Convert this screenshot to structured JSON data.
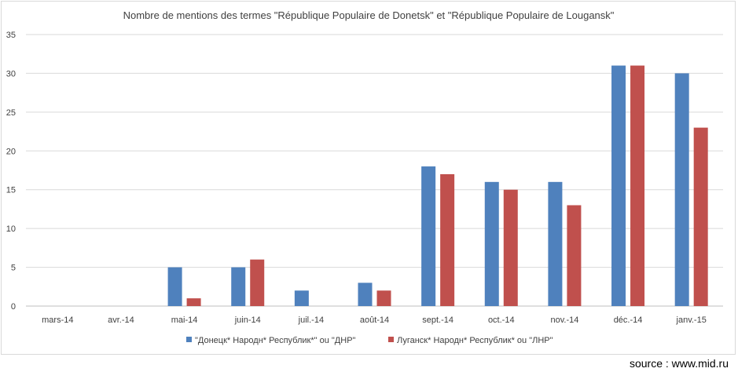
{
  "source_text": "source : www.mid.ru",
  "chart_data": {
    "type": "bar",
    "title": "Nombre de mentions des termes \"République Populaire de Donetsk\" et \"République Populaire de Lougansk\"",
    "categories": [
      "mars-14",
      "avr.-14",
      "mai-14",
      "juin-14",
      "juil.-14",
      "août-14",
      "sept.-14",
      "oct.-14",
      "nov.-14",
      "déc.-14",
      "janv.-15"
    ],
    "series": [
      {
        "name": "\"Донецк* Народн* Республик*\" ou \"ДНР\"",
        "color": "#4f81bd",
        "values": [
          0,
          0,
          5,
          5,
          2,
          3,
          18,
          16,
          16,
          31,
          30
        ]
      },
      {
        "name": "Луганск* Народн* Республик* ou \"ЛНР\"",
        "color": "#c0504d",
        "values": [
          0,
          0,
          1,
          6,
          0,
          2,
          17,
          15,
          13,
          31,
          23
        ]
      }
    ],
    "ylim": [
      0,
      35
    ],
    "yticks": [
      0,
      5,
      10,
      15,
      20,
      25,
      30,
      35
    ],
    "grid": true,
    "legend_position": "bottom"
  }
}
